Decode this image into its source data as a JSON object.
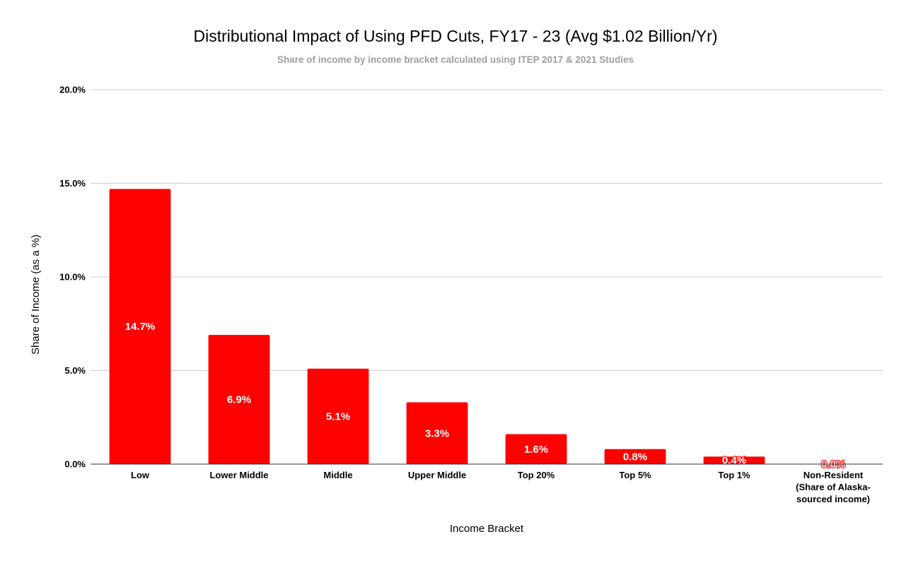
{
  "chart_data": {
    "type": "bar",
    "title": "Distributional Impact of Using PFD Cuts, FY17 - 23 (Avg $1.02 Billion/Yr)",
    "subtitle": "Share of income by income bracket calculated using ITEP 2017 & 2021 Studies",
    "xlabel": "Income Bracket",
    "ylabel": "Share of Income (as a %)",
    "categories": [
      [
        "Low"
      ],
      [
        "Lower Middle"
      ],
      [
        "Middle"
      ],
      [
        "Upper Middle"
      ],
      [
        "Top 20%"
      ],
      [
        "Top 5%"
      ],
      [
        "Top 1%"
      ],
      [
        "Non-Resident",
        "(Share of Alaska-",
        "sourced income)"
      ]
    ],
    "values": [
      14.7,
      6.9,
      5.1,
      3.3,
      1.6,
      0.8,
      0.4,
      0.0
    ],
    "data_labels": [
      "14.7%",
      "6.9%",
      "5.1%",
      "3.3%",
      "1.6%",
      "0.8%",
      "0.4%",
      "0.0%"
    ],
    "ylim": [
      0,
      20
    ],
    "yticks": [
      0,
      5,
      10,
      15,
      20
    ],
    "ytick_labels": [
      "0.0%",
      "5.0%",
      "10.0%",
      "15.0%",
      "20.0%"
    ],
    "grid": true,
    "legend": "none",
    "bar_color": "#ff0000",
    "data_label_color": "#ffffff"
  }
}
